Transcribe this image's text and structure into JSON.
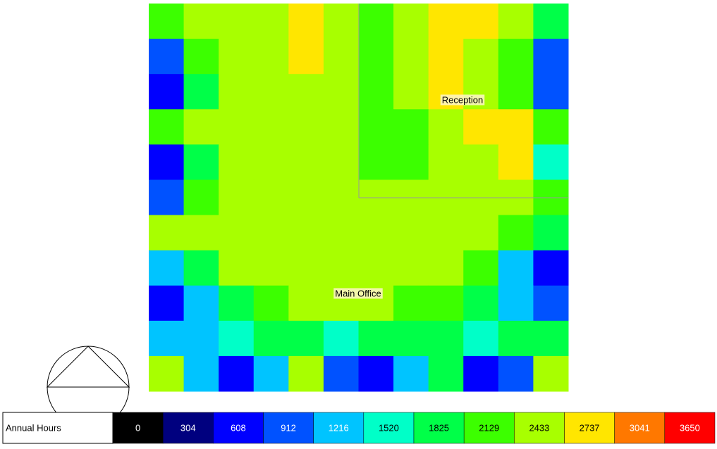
{
  "zones": [
    {
      "label": "Reception"
    },
    {
      "label": "Main Office"
    }
  ],
  "legend": {
    "title": "Annual Hours",
    "levels": [
      {
        "value": 0,
        "color": "#000000"
      },
      {
        "value": 304,
        "color": "#00007f"
      },
      {
        "value": 608,
        "color": "#0000ff"
      },
      {
        "value": 912,
        "color": "#0052ff"
      },
      {
        "value": 1216,
        "color": "#00c4ff"
      },
      {
        "value": 1520,
        "color": "#00ffc8"
      },
      {
        "value": 1825,
        "color": "#00ff48"
      },
      {
        "value": 2129,
        "color": "#3cff00"
      },
      {
        "value": 2433,
        "color": "#a8ff00"
      },
      {
        "value": 2737,
        "color": "#ffe600"
      },
      {
        "value": 3041,
        "color": "#ff7800"
      },
      {
        "value": 3650,
        "color": "#ff0000"
      }
    ]
  },
  "grid": {
    "values": [
      [
        2300,
        2500,
        2600,
        2700,
        2900,
        2700,
        2300,
        2600,
        3000,
        3000,
        2600,
        1900
      ],
      [
        1000,
        2200,
        2600,
        2700,
        2800,
        2700,
        2200,
        2500,
        2900,
        2700,
        2200,
        1200
      ],
      [
        900,
        2000,
        2600,
        2700,
        2700,
        2700,
        2300,
        2500,
        2800,
        2700,
        2200,
        1000
      ],
      [
        2300,
        2500,
        2700,
        2700,
        2700,
        2700,
        2300,
        2400,
        2700,
        2900,
        2900,
        2300
      ],
      [
        900,
        2000,
        2600,
        2700,
        2700,
        2700,
        2200,
        2300,
        2500,
        2700,
        2800,
        1800
      ],
      [
        1200,
        2200,
        2700,
        2700,
        2700,
        2700,
        2700,
        2700,
        2700,
        2700,
        2600,
        2300
      ],
      [
        2500,
        2600,
        2700,
        2700,
        2700,
        2700,
        2700,
        2700,
        2700,
        2600,
        2200,
        2000
      ],
      [
        1500,
        2100,
        2600,
        2700,
        2700,
        2700,
        2700,
        2700,
        2600,
        2200,
        1500,
        900
      ],
      [
        900,
        1400,
        2100,
        2400,
        2500,
        2600,
        2600,
        2400,
        2200,
        1900,
        1500,
        1000
      ],
      [
        1400,
        1500,
        1600,
        2000,
        2100,
        1800,
        1900,
        2000,
        2100,
        1700,
        1900,
        2100
      ],
      [
        2600,
        1500,
        700,
        1400,
        2600,
        1000,
        800,
        1400,
        2000,
        700,
        1000,
        2500
      ]
    ]
  }
}
